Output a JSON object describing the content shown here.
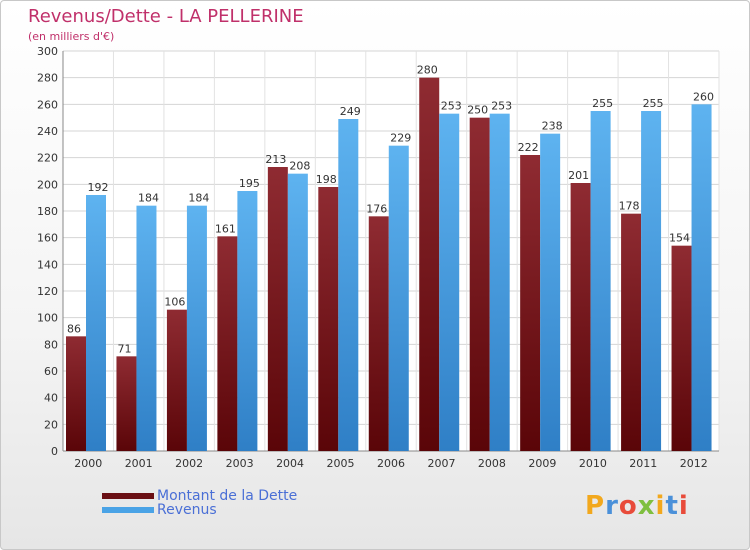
{
  "title": "Revenus/Dette - LA PELLERINE",
  "subtitle": "(en milliers d'€)",
  "logo": {
    "letters": [
      "P",
      "r",
      "o",
      "x",
      "i",
      "t",
      "i"
    ],
    "colors": [
      "#f2a81d",
      "#4a90d9",
      "#e84b3a",
      "#7fbf3f",
      "#f2a81d",
      "#4a90d9",
      "#e84b3a"
    ]
  },
  "colors": {
    "dette": "#7a1a1f",
    "revenus": "#4aa3e6",
    "title": "#c0306a",
    "legend_text": "#4a6fd6"
  },
  "chart_data": {
    "type": "bar",
    "title": "Revenus/Dette - LA PELLERINE",
    "ylabel": "(en milliers d'€)",
    "xlabel": "",
    "ylim": [
      0,
      300
    ],
    "yticks": [
      0,
      20,
      40,
      60,
      80,
      100,
      120,
      140,
      160,
      180,
      200,
      220,
      240,
      260,
      280,
      300
    ],
    "grid": true,
    "legend_position": "bottom-left",
    "categories": [
      "2000",
      "2001",
      "2002",
      "2003",
      "2004",
      "2005",
      "2006",
      "2007",
      "2008",
      "2009",
      "2010",
      "2011",
      "2012"
    ],
    "series": [
      {
        "name": "Montant de la Dette",
        "values": [
          86,
          71,
          106,
          161,
          213,
          198,
          176,
          280,
          250,
          222,
          201,
          178,
          154
        ]
      },
      {
        "name": "Revenus",
        "values": [
          192,
          184,
          184,
          195,
          208,
          249,
          229,
          253,
          253,
          238,
          255,
          255,
          260
        ]
      }
    ]
  }
}
